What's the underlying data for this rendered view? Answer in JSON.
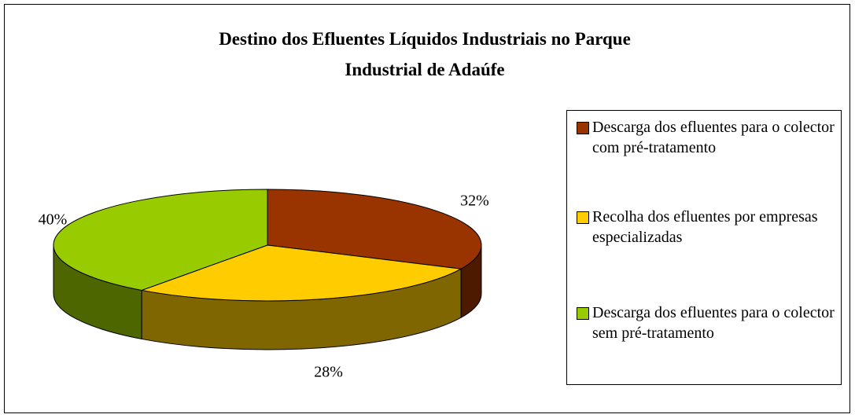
{
  "chart_data": {
    "type": "pie3d",
    "title": "Destino dos Efluentes Líquidos Industriais no Parque Industrial de Adaúfe",
    "categories": [
      "Descarga dos efluentes para o colector com pré-tratamento",
      "Recolha dos efluentes por empresas especializadas",
      "Descarga dos efluentes para o colector sem pré-tratamento"
    ],
    "values": [
      32,
      28,
      40
    ],
    "value_labels": [
      "32%",
      "28%",
      "40%"
    ],
    "colors": [
      "#993300",
      "#ffcc00",
      "#99cc00"
    ],
    "legend": "right"
  }
}
